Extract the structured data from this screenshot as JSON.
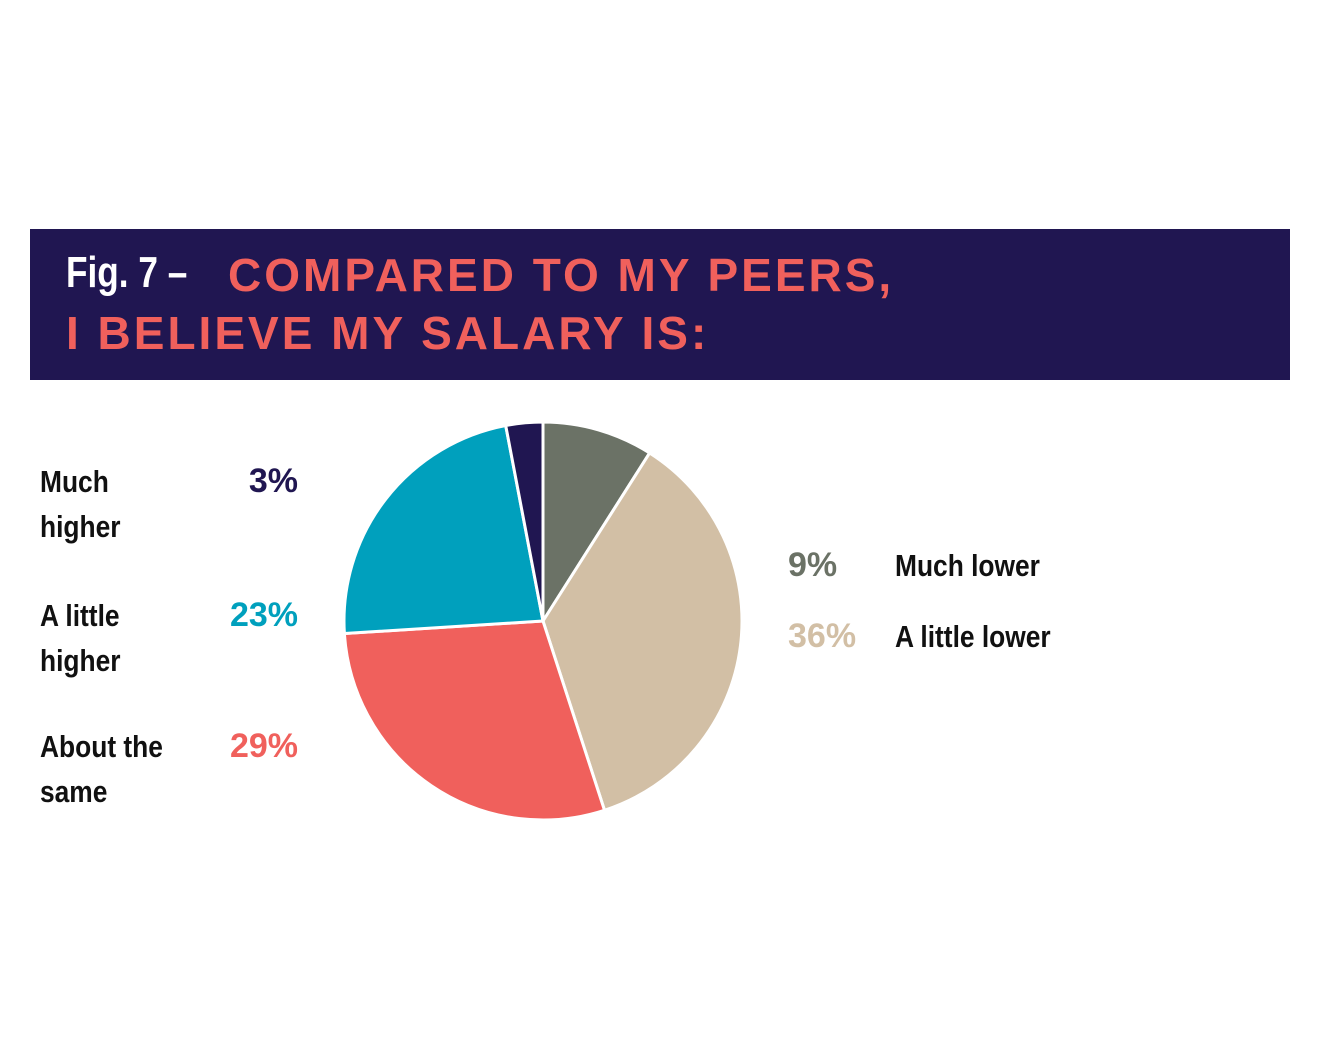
{
  "chart_data": {
    "type": "pie",
    "figure_label": "Fig. 7 –",
    "title_lines": [
      "COMPARED TO MY PEERS,",
      "I BELIEVE MY SALARY IS:"
    ],
    "categories": [
      "Much lower",
      "A little lower",
      "About the same",
      "A little higher",
      "Much higher"
    ],
    "values": [
      9,
      36,
      29,
      23,
      3
    ],
    "value_labels": [
      "9%",
      "36%",
      "29%",
      "23%",
      "3%"
    ],
    "colors": [
      "#6b7266",
      "#d2bfa5",
      "#f0605c",
      "#00a0bd",
      "#201651"
    ]
  }
}
